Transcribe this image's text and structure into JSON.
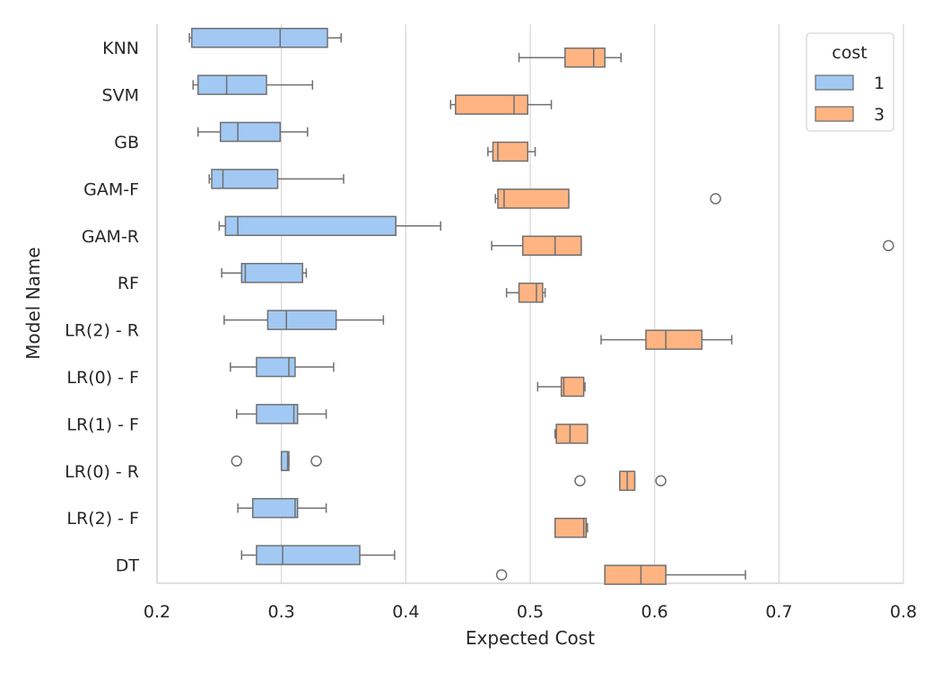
{
  "chart_data": {
    "type": "box",
    "orientation": "horizontal",
    "title": "",
    "xlabel": "Expected Cost",
    "ylabel": "Model Name",
    "xlim": [
      0.2,
      0.8
    ],
    "xticks": [
      "0.2",
      "0.3",
      "0.4",
      "0.5",
      "0.6",
      "0.7",
      "0.8"
    ],
    "grid": "vertical",
    "legend": {
      "title": "cost",
      "placement": "top-right"
    },
    "categories": [
      "KNN",
      "SVM",
      "GB",
      "GAM-F",
      "GAM-R",
      "RF",
      "LR(2) - R",
      "LR(0) - F",
      "LR(1) - F",
      "LR(0) - R",
      "LR(2) - F",
      "DT"
    ],
    "series": [
      {
        "name": "1",
        "color": "#a1c9f4",
        "boxes": [
          {
            "whislo": 0.226,
            "q1": 0.228,
            "med": 0.299,
            "q3": 0.337,
            "whishi": 0.348,
            "fliers": []
          },
          {
            "whislo": 0.229,
            "q1": 0.233,
            "med": 0.256,
            "q3": 0.288,
            "whishi": 0.325,
            "fliers": []
          },
          {
            "whislo": 0.233,
            "q1": 0.251,
            "med": 0.265,
            "q3": 0.299,
            "whishi": 0.321,
            "fliers": []
          },
          {
            "whislo": 0.242,
            "q1": 0.244,
            "med": 0.253,
            "q3": 0.297,
            "whishi": 0.35,
            "fliers": []
          },
          {
            "whislo": 0.25,
            "q1": 0.255,
            "med": 0.265,
            "q3": 0.392,
            "whishi": 0.428,
            "fliers": []
          },
          {
            "whislo": 0.252,
            "q1": 0.268,
            "med": 0.271,
            "q3": 0.317,
            "whishi": 0.32,
            "fliers": []
          },
          {
            "whislo": 0.254,
            "q1": 0.289,
            "med": 0.304,
            "q3": 0.344,
            "whishi": 0.382,
            "fliers": []
          },
          {
            "whislo": 0.259,
            "q1": 0.28,
            "med": 0.306,
            "q3": 0.311,
            "whishi": 0.342,
            "fliers": []
          },
          {
            "whislo": 0.264,
            "q1": 0.28,
            "med": 0.31,
            "q3": 0.313,
            "whishi": 0.336,
            "fliers": []
          },
          {
            "whislo": 0.3,
            "q1": 0.3,
            "med": 0.305,
            "q3": 0.306,
            "whishi": 0.306,
            "fliers": [
              0.264,
              0.328
            ]
          },
          {
            "whislo": 0.265,
            "q1": 0.277,
            "med": 0.311,
            "q3": 0.313,
            "whishi": 0.336,
            "fliers": []
          },
          {
            "whislo": 0.268,
            "q1": 0.28,
            "med": 0.301,
            "q3": 0.363,
            "whishi": 0.391,
            "fliers": []
          }
        ]
      },
      {
        "name": "3",
        "color": "#ffb482",
        "boxes": [
          {
            "whislo": 0.491,
            "q1": 0.528,
            "med": 0.551,
            "q3": 0.56,
            "whishi": 0.573,
            "fliers": []
          },
          {
            "whislo": 0.436,
            "q1": 0.44,
            "med": 0.487,
            "q3": 0.498,
            "whishi": 0.517,
            "fliers": []
          },
          {
            "whislo": 0.466,
            "q1": 0.47,
            "med": 0.474,
            "q3": 0.498,
            "whishi": 0.504,
            "fliers": []
          },
          {
            "whislo": 0.472,
            "q1": 0.474,
            "med": 0.479,
            "q3": 0.531,
            "whishi": 0.531,
            "fliers": [
              0.649
            ]
          },
          {
            "whislo": 0.469,
            "q1": 0.494,
            "med": 0.52,
            "q3": 0.541,
            "whishi": 0.541,
            "fliers": [
              0.788
            ]
          },
          {
            "whislo": 0.481,
            "q1": 0.491,
            "med": 0.505,
            "q3": 0.51,
            "whishi": 0.512,
            "fliers": []
          },
          {
            "whislo": 0.557,
            "q1": 0.593,
            "med": 0.609,
            "q3": 0.638,
            "whishi": 0.662,
            "fliers": []
          },
          {
            "whislo": 0.506,
            "q1": 0.525,
            "med": 0.527,
            "q3": 0.543,
            "whishi": 0.544,
            "fliers": []
          },
          {
            "whislo": 0.52,
            "q1": 0.521,
            "med": 0.532,
            "q3": 0.546,
            "whishi": 0.546,
            "fliers": []
          },
          {
            "whislo": 0.572,
            "q1": 0.572,
            "med": 0.578,
            "q3": 0.584,
            "whishi": 0.584,
            "fliers": [
              0.54,
              0.605
            ]
          },
          {
            "whislo": 0.52,
            "q1": 0.52,
            "med": 0.543,
            "q3": 0.545,
            "whishi": 0.546,
            "fliers": []
          },
          {
            "whislo": 0.56,
            "q1": 0.56,
            "med": 0.589,
            "q3": 0.609,
            "whishi": 0.673,
            "fliers": [
              0.477
            ]
          }
        ]
      }
    ]
  }
}
